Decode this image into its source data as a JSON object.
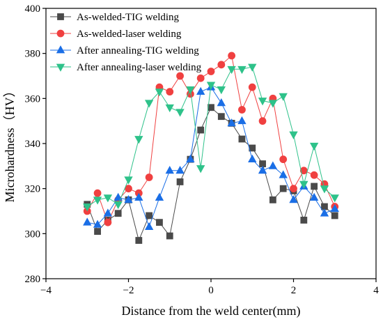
{
  "chart_data": {
    "type": "line",
    "xlabel": "Distance from the weld center(mm)",
    "ylabel": "Microhardness（HV）",
    "xlim": [
      -4,
      4
    ],
    "ylim": [
      280,
      400
    ],
    "xticks": [
      -4,
      -2,
      0,
      2,
      4
    ],
    "yticks": [
      280,
      300,
      320,
      340,
      360,
      380,
      400
    ],
    "xtick_labels": [
      "−4",
      "−2",
      "0",
      "2",
      "4"
    ],
    "ytick_labels": [
      "280",
      "300",
      "320",
      "340",
      "360",
      "380",
      "400"
    ],
    "legend_position": "top-left",
    "grid": false,
    "x": [
      -3,
      -2.75,
      -2.5,
      -2.25,
      -2,
      -1.75,
      -1.5,
      -1.25,
      -1,
      -0.75,
      -0.5,
      -0.25,
      0,
      0.25,
      0.5,
      0.75,
      1,
      1.25,
      1.5,
      1.75,
      2,
      2.25,
      2.5,
      2.75,
      3
    ],
    "series": [
      {
        "name": "As-welded-TIG welding",
        "color": "#4a4a4a",
        "marker": "square",
        "values": [
          313,
          301,
          306,
          309,
          315,
          297,
          308,
          305,
          299,
          323,
          333,
          346,
          356,
          352,
          349,
          342,
          338,
          331,
          315,
          320,
          319,
          306,
          321,
          312,
          308
        ]
      },
      {
        "name": "As-welded-laser welding",
        "color": "#f04040",
        "marker": "circle",
        "values": [
          310,
          318,
          305,
          315,
          320,
          318,
          325,
          365,
          363,
          370,
          362,
          369,
          372,
          375,
          379,
          355,
          365,
          350,
          360,
          333,
          320,
          328,
          326,
          322,
          312
        ]
      },
      {
        "name": "After annealing-TIG welding",
        "color": "#1a6ee6",
        "marker": "triangle-up",
        "values": [
          305,
          304,
          309,
          316,
          315,
          316,
          303,
          316,
          328,
          328,
          333,
          363,
          365,
          358,
          349,
          350,
          333,
          328,
          330,
          326,
          315,
          321,
          316,
          309,
          311
        ]
      },
      {
        "name": "After annealing-laser welding",
        "color": "#2ec28a",
        "marker": "triangle-down",
        "values": [
          312,
          315,
          316,
          313,
          324,
          342,
          358,
          363,
          356,
          354,
          364,
          329,
          366,
          364,
          373,
          373,
          374,
          359,
          358,
          361,
          344,
          322,
          339,
          320,
          316
        ]
      }
    ]
  }
}
